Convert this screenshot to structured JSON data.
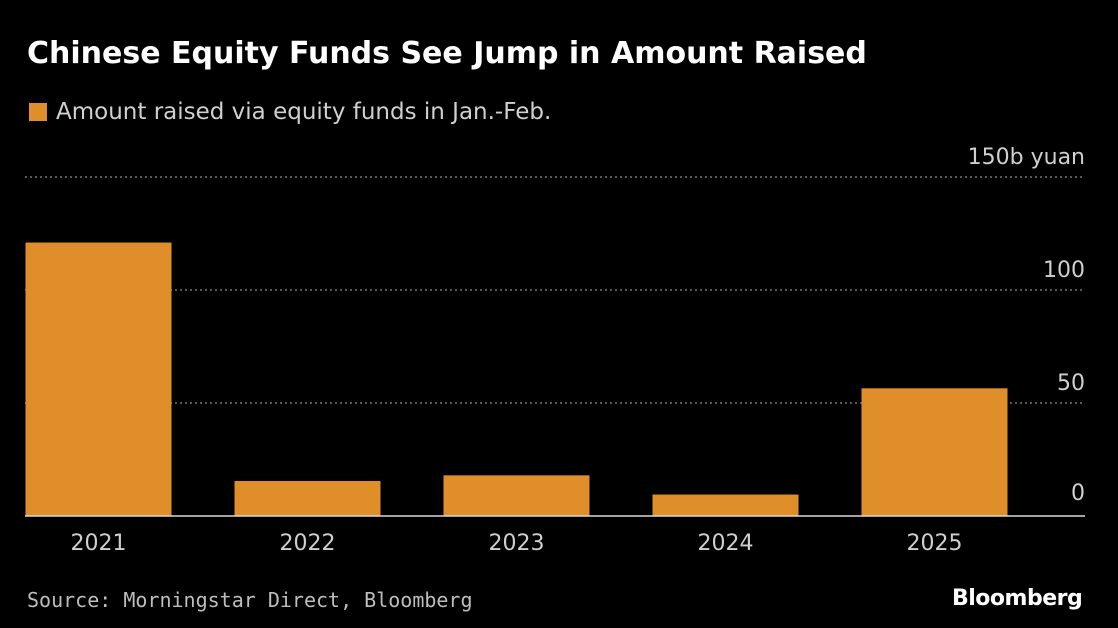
{
  "chart_data": {
    "type": "bar",
    "title": "Chinese Equity Funds See Jump in Amount Raised",
    "categories": [
      "2021",
      "2022",
      "2023",
      "2024",
      "2025"
    ],
    "series": [
      {
        "name": "Amount raised via equity funds in Jan.-Feb.",
        "values": [
          121,
          15.5,
          18,
          9.5,
          56.5
        ]
      }
    ],
    "yticks": [
      {
        "value": 150,
        "label": "150b yuan"
      },
      {
        "value": 100,
        "label": "100"
      },
      {
        "value": 50,
        "label": "50"
      },
      {
        "value": 0,
        "label": "0"
      }
    ],
    "ylim": [
      0,
      150
    ],
    "xlabel": "",
    "ylabel": "",
    "grid": true,
    "legend_position": "top-left",
    "colors": {
      "bar": "#e08e2a",
      "background": "#000000",
      "grid": "#8c8c8c",
      "baseline": "#d9d9d9",
      "text": "#cfcfcf"
    }
  },
  "footer": {
    "source": "Source: Morningstar Direct, Bloomberg",
    "brand": "Bloomberg"
  }
}
